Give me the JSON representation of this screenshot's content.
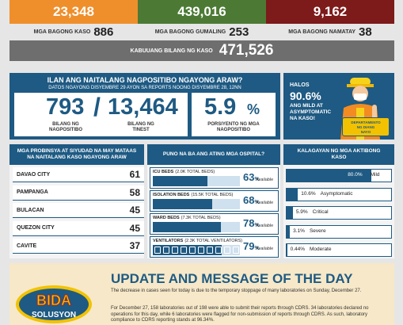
{
  "colors": {
    "blue": "#1e5a83",
    "orange": "#ef8f2c",
    "green": "#4c7a34",
    "maroon": "#7d1a1a"
  },
  "top_stats": {
    "active": "23,348",
    "recovered": "439,016",
    "deaths": "9,162"
  },
  "new_cases": {
    "cases_label": "MGA BAGONG KASO",
    "cases_value": "886",
    "recovered_label": "MGA BAGONG GUMALING",
    "recovered_value": "253",
    "deaths_label": "MGA BAGONG NAMATAY",
    "deaths_value": "38"
  },
  "total": {
    "label": "KABUUANG BILANG NG KASO",
    "value": "471,526"
  },
  "positive": {
    "title": "ILAN ANG NAITALANG NAGPOSITIBO NGAYONG ARAW?",
    "subtitle": "DATOS NGAYONG DISYEMBRE 29 AYON SA REPORTS NOONG DISYEMBRE 28, 12NN",
    "positive_value": "793",
    "positive_label_1": "BILANG NG",
    "positive_label_2": "NAGPOSITIBO",
    "slash": "/",
    "tested_value": "13,464",
    "tested_label_1": "BILANG NG",
    "tested_label_2": "TINEST",
    "rate_value": "5.9",
    "rate_unit": "%",
    "rate_label_1": "PORSIYENTO NG MGA",
    "rate_label_2": "NAGPOSITIBO"
  },
  "mild": {
    "halos": "HALOS",
    "value": "90.6%",
    "line1": "ANG MILD AT",
    "line2": "ASYMPTOMATIC",
    "line3": "NA KASO!",
    "badge_1": "DEPARTAMENTO",
    "badge_2": "NG DIANG",
    "badge_3": "NAYO"
  },
  "provinces": {
    "heading": "MGA PROBINSYA AT SIYUDAD NA MAY MATAAS NA NAITALANG KASO NGAYONG ARAW",
    "items": [
      {
        "name": "DAVAO CITY",
        "value": "61"
      },
      {
        "name": "PAMPANGA",
        "value": "58"
      },
      {
        "name": "BULACAN",
        "value": "45"
      },
      {
        "name": "QUEZON CITY",
        "value": "45"
      },
      {
        "name": "CAVITE",
        "value": "37"
      }
    ]
  },
  "hospitals": {
    "heading": "PUNO NA BA ANG ATING MGA OSPITAL?",
    "items": [
      {
        "label": "ICU BEDS",
        "note": "(2.0K TOTAL BEDS)",
        "pct": "63",
        "fill": 0.63,
        "available": "Available"
      },
      {
        "label": "ISOLATION BEDS",
        "note": "(15.5K TOTAL BEDS)",
        "pct": "68",
        "fill": 0.68,
        "available": "Available"
      },
      {
        "label": "WARD BEDS",
        "note": "(7.3K TOTAL BEDS)",
        "pct": "78",
        "fill": 0.78,
        "available": "Available"
      },
      {
        "label": "VENTILATORS",
        "note": "(2.3K TOTAL VENTILATORS)",
        "pct": "79",
        "fill": 0.79,
        "available": "Available"
      }
    ],
    "percent_sign": "%"
  },
  "active_status": {
    "heading": "KALAGAYAN NG MGA AKTIBONG KASO",
    "items": [
      {
        "pct": "80.0%",
        "label": "Mild",
        "fill": 0.8
      },
      {
        "pct": "10.6%",
        "label": "Asymptomatic",
        "fill": 0.106
      },
      {
        "pct": "5.9%",
        "label": "Critical",
        "fill": 0.059
      },
      {
        "pct": "3.1%",
        "label": "Severe",
        "fill": 0.031
      },
      {
        "pct": "0.44%",
        "label": "Moderate",
        "fill": 0.0044
      }
    ]
  },
  "update": {
    "title": "UPDATE AND MESSAGE OF THE DAY",
    "p1": "The decrease in cases seen for today is due to the temporary stoppage of many laboratories on Sunday, December 27.",
    "p2": "For December 27, 158 laboratories out of 198 were able to submit their reports through CDRS. 34 laboratories declared no operations for this day, while 6 laboratories were flagged for non-submission of reports through CDRS. As such, laboratory compliance to CDRS reporting stands at 96.34%.",
    "logo_line1": "BIDA",
    "logo_line2": "SOLUSYON"
  }
}
